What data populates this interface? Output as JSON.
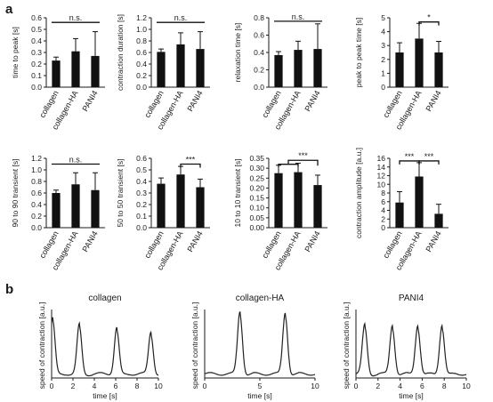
{
  "panel_labels": {
    "a": "a",
    "b": "b"
  },
  "chart_data": [
    {
      "type": "bar",
      "categories": [
        "collagen",
        "collagen-HA",
        "PANI4"
      ],
      "values": [
        0.23,
        0.31,
        0.27
      ],
      "errors": [
        0.03,
        0.11,
        0.21
      ],
      "ylabel": "time to peak [s]",
      "ylim": [
        0,
        0.6
      ],
      "yticks": [
        "0.0",
        "0.1",
        "0.2",
        "0.3",
        "0.4",
        "0.5",
        "0.6"
      ],
      "tick_values": [
        0,
        0.1,
        0.2,
        0.3,
        0.4,
        0.5,
        0.6
      ],
      "significance": [
        {
          "label": "n.s.",
          "from": 0,
          "to": 2,
          "y": 0.56,
          "style": "flat"
        }
      ]
    },
    {
      "type": "bar",
      "categories": [
        "collagen",
        "collagen-HA",
        "PANI4"
      ],
      "values": [
        0.61,
        0.74,
        0.66
      ],
      "errors": [
        0.05,
        0.2,
        0.3
      ],
      "ylabel": "contraction duration [s]",
      "ylim": [
        0,
        1.2
      ],
      "yticks": [
        "0.0",
        "0.2",
        "0.4",
        "0.6",
        "0.8",
        "1.0",
        "1.2"
      ],
      "tick_values": [
        0,
        0.2,
        0.4,
        0.6,
        0.8,
        1.0,
        1.2
      ],
      "significance": [
        {
          "label": "n.s.",
          "from": 0,
          "to": 2,
          "y": 1.12,
          "style": "flat"
        }
      ]
    },
    {
      "type": "bar",
      "categories": [
        "collagen",
        "collagen-HA",
        "PANI4"
      ],
      "values": [
        0.37,
        0.43,
        0.44
      ],
      "errors": [
        0.04,
        0.1,
        0.29
      ],
      "ylabel": "relaxation time [s]",
      "ylim": [
        0,
        0.8
      ],
      "yticks": [
        "0.0",
        "0.2",
        "0.4",
        "0.6",
        "0.8"
      ],
      "tick_values": [
        0,
        0.2,
        0.4,
        0.6,
        0.8
      ],
      "significance": [
        {
          "label": "n.s.",
          "from": 0,
          "to": 2,
          "y": 0.76,
          "style": "flat"
        }
      ]
    },
    {
      "type": "bar",
      "categories": [
        "collagen",
        "collagen-HA",
        "PANI4"
      ],
      "values": [
        2.5,
        3.5,
        2.5
      ],
      "errors": [
        0.7,
        1.1,
        0.8
      ],
      "ylabel": "peak to peak time [s]",
      "ylim": [
        0,
        5
      ],
      "yticks": [
        "0",
        "1",
        "2",
        "3",
        "4",
        "5"
      ],
      "tick_values": [
        0,
        1,
        2,
        3,
        4,
        5
      ],
      "significance": [
        {
          "label": "*",
          "from": 1,
          "to": 2,
          "y": 4.7,
          "style": "bracket"
        }
      ]
    },
    {
      "type": "bar",
      "categories": [
        "collagen",
        "collagen-HA",
        "PANI4"
      ],
      "values": [
        0.6,
        0.75,
        0.65
      ],
      "errors": [
        0.05,
        0.2,
        0.3
      ],
      "ylabel": "90 to 90 transient [s]",
      "ylim": [
        0,
        1.2
      ],
      "yticks": [
        "0.0",
        "0.2",
        "0.4",
        "0.6",
        "0.8",
        "1.0",
        "1.2"
      ],
      "tick_values": [
        0,
        0.2,
        0.4,
        0.6,
        0.8,
        1.0,
        1.2
      ],
      "significance": [
        {
          "label": "n.s.",
          "from": 0,
          "to": 2,
          "y": 1.1,
          "style": "flat"
        }
      ]
    },
    {
      "type": "bar",
      "categories": [
        "collagen",
        "collagen-HA",
        "PANI4"
      ],
      "values": [
        0.38,
        0.46,
        0.35
      ],
      "errors": [
        0.05,
        0.07,
        0.07
      ],
      "ylabel": "50 to 50 transient [s]",
      "ylim": [
        0,
        0.6
      ],
      "yticks": [
        "0.0",
        "0.1",
        "0.2",
        "0.3",
        "0.4",
        "0.5",
        "0.6"
      ],
      "tick_values": [
        0,
        0.1,
        0.2,
        0.3,
        0.4,
        0.5,
        0.6
      ],
      "significance": [
        {
          "label": "***",
          "from": 1,
          "to": 2,
          "y": 0.55,
          "style": "bracket"
        }
      ]
    },
    {
      "type": "bar",
      "categories": [
        "collagen",
        "collagen-HA",
        "PANI4"
      ],
      "values": [
        0.275,
        0.28,
        0.215
      ],
      "errors": [
        0.04,
        0.045,
        0.05
      ],
      "ylabel": "10 to 10 transient [s]",
      "ylim": [
        0,
        0.35
      ],
      "yticks": [
        "0.00",
        "0.05",
        "0.10",
        "0.15",
        "0.20",
        "0.25",
        "0.30",
        "0.35"
      ],
      "tick_values": [
        0,
        0.05,
        0.1,
        0.15,
        0.2,
        0.25,
        0.3,
        0.35
      ],
      "significance": [
        {
          "label": "***",
          "from": 0.5,
          "to": 2,
          "y": 0.34,
          "style": "group_bracket",
          "group": [
            0,
            1
          ],
          "group_y": 0.32
        }
      ]
    },
    {
      "type": "bar",
      "categories": [
        "collagen",
        "collagen-HA",
        "PANI4"
      ],
      "values": [
        5.8,
        11.8,
        3.2
      ],
      "errors": [
        2.5,
        3.2,
        2.2
      ],
      "ylabel": "contraction amplitude [a.u.]",
      "ylim": [
        0,
        16
      ],
      "yticks": [
        "0",
        "2",
        "4",
        "6",
        "8",
        "10",
        "12",
        "14",
        "16"
      ],
      "tick_values": [
        0,
        2,
        4,
        6,
        8,
        10,
        12,
        14,
        16
      ],
      "significance": [
        {
          "label": "***",
          "from": 0,
          "to": 1,
          "y": 15.4,
          "style": "bracket"
        },
        {
          "label": "***",
          "from": 1,
          "to": 2,
          "y": 15.4,
          "style": "bracket"
        }
      ]
    },
    {
      "type": "line",
      "title": "collagen",
      "xlabel": "time [s]",
      "ylabel": "speed of contraction [a.u.]",
      "xlim": [
        0,
        10
      ],
      "xticks": [
        "0",
        "2",
        "4",
        "6",
        "8",
        "10"
      ],
      "tick_values": [
        0,
        2,
        4,
        6,
        8,
        10
      ],
      "peaks": [
        0.1,
        2.6,
        6.1,
        9.3
      ],
      "peak_heights": [
        0.82,
        0.72,
        0.68,
        0.62
      ]
    },
    {
      "type": "line",
      "title": "collagen-HA",
      "xlabel": "time [s]",
      "ylabel": "speed of contraction [a.u.]",
      "xlim": [
        0,
        10
      ],
      "xticks": [
        "0",
        "5",
        "10"
      ],
      "tick_values": [
        0,
        5,
        10
      ],
      "peaks": [
        3.2,
        7.3
      ],
      "peak_heights": [
        0.92,
        0.9
      ]
    },
    {
      "type": "line",
      "title": "PANI4",
      "xlabel": "time [s]",
      "ylabel": "speed of contraction [a.u.]",
      "xlim": [
        0,
        10
      ],
      "xticks": [
        "0",
        "2",
        "4",
        "6",
        "8",
        "10"
      ],
      "tick_values": [
        0,
        2,
        4,
        6,
        8,
        10
      ],
      "peaks": [
        0.8,
        3.3,
        5.6,
        7.8
      ],
      "peak_heights": [
        0.72,
        0.72,
        0.72,
        0.72
      ]
    }
  ]
}
